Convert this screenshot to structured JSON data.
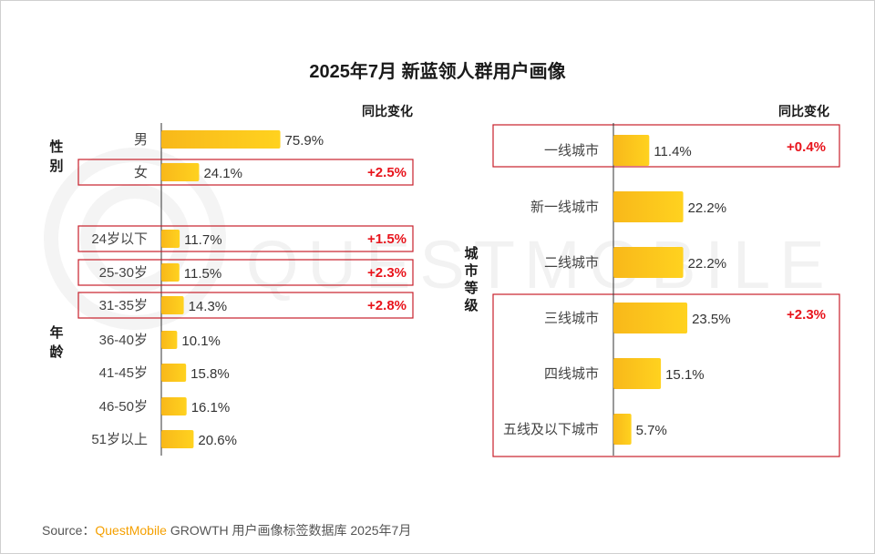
{
  "title": "2025年7月 新蓝领人群用户画像",
  "source": {
    "label": "Source：",
    "brand": "QuestMobile",
    "rest": " GROWTH 用户画像标签数据库 2025年7月"
  },
  "watermark_text": "QUESTMOBILE",
  "colors": {
    "bar_start": "#f8b81a",
    "bar_end": "#ffd21f",
    "highlight_border": "#c7202b",
    "change_text": "#e8141c"
  },
  "chart_data": [
    {
      "type": "bar",
      "orientation": "horizontal",
      "change_header": "同比变化",
      "groups": [
        {
          "label": "性别",
          "categories": [
            "男",
            "女"
          ]
        },
        {
          "label": "年龄",
          "categories": [
            "24岁以下",
            "25-30岁",
            "31-35岁",
            "36-40岁",
            "41-45岁",
            "46-50岁",
            "51岁以上"
          ]
        }
      ],
      "categories": [
        "男",
        "女",
        "24岁以下",
        "25-30岁",
        "31-35岁",
        "36-40岁",
        "41-45岁",
        "46-50岁",
        "51岁以上"
      ],
      "values": [
        75.9,
        24.1,
        11.7,
        11.5,
        14.3,
        10.1,
        15.8,
        16.1,
        20.6
      ],
      "value_labels": [
        "75.9%",
        "24.1%",
        "11.7%",
        "11.5%",
        "14.3%",
        "10.1%",
        "15.8%",
        "16.1%",
        "20.6%"
      ],
      "changes": [
        "",
        "+2.5%",
        "+1.5%",
        "+2.3%",
        "+2.8%",
        "",
        "",
        "",
        ""
      ],
      "highlighted": [
        false,
        true,
        true,
        true,
        true,
        false,
        false,
        false,
        false
      ],
      "unit": "%"
    },
    {
      "type": "bar",
      "orientation": "horizontal",
      "change_header": "同比变化",
      "groups": [
        {
          "label": "城市等级",
          "categories": [
            "一线城市",
            "新一线城市",
            "二线城市",
            "三线城市",
            "四线城市",
            "五线及以下城市"
          ]
        }
      ],
      "categories": [
        "一线城市",
        "新一线城市",
        "二线城市",
        "三线城市",
        "四线城市",
        "五线及以下城市"
      ],
      "values": [
        11.4,
        22.2,
        22.2,
        23.5,
        15.1,
        5.7
      ],
      "value_labels": [
        "11.4%",
        "22.2%",
        "22.2%",
        "23.5%",
        "15.1%",
        "5.7%"
      ],
      "changes": [
        "+0.4%",
        "",
        "",
        "+2.3%",
        "",
        ""
      ],
      "highlight_boxes": [
        [
          "一线城市"
        ],
        [
          "三线城市",
          "四线城市",
          "五线及以下城市"
        ]
      ],
      "unit": "%"
    }
  ]
}
